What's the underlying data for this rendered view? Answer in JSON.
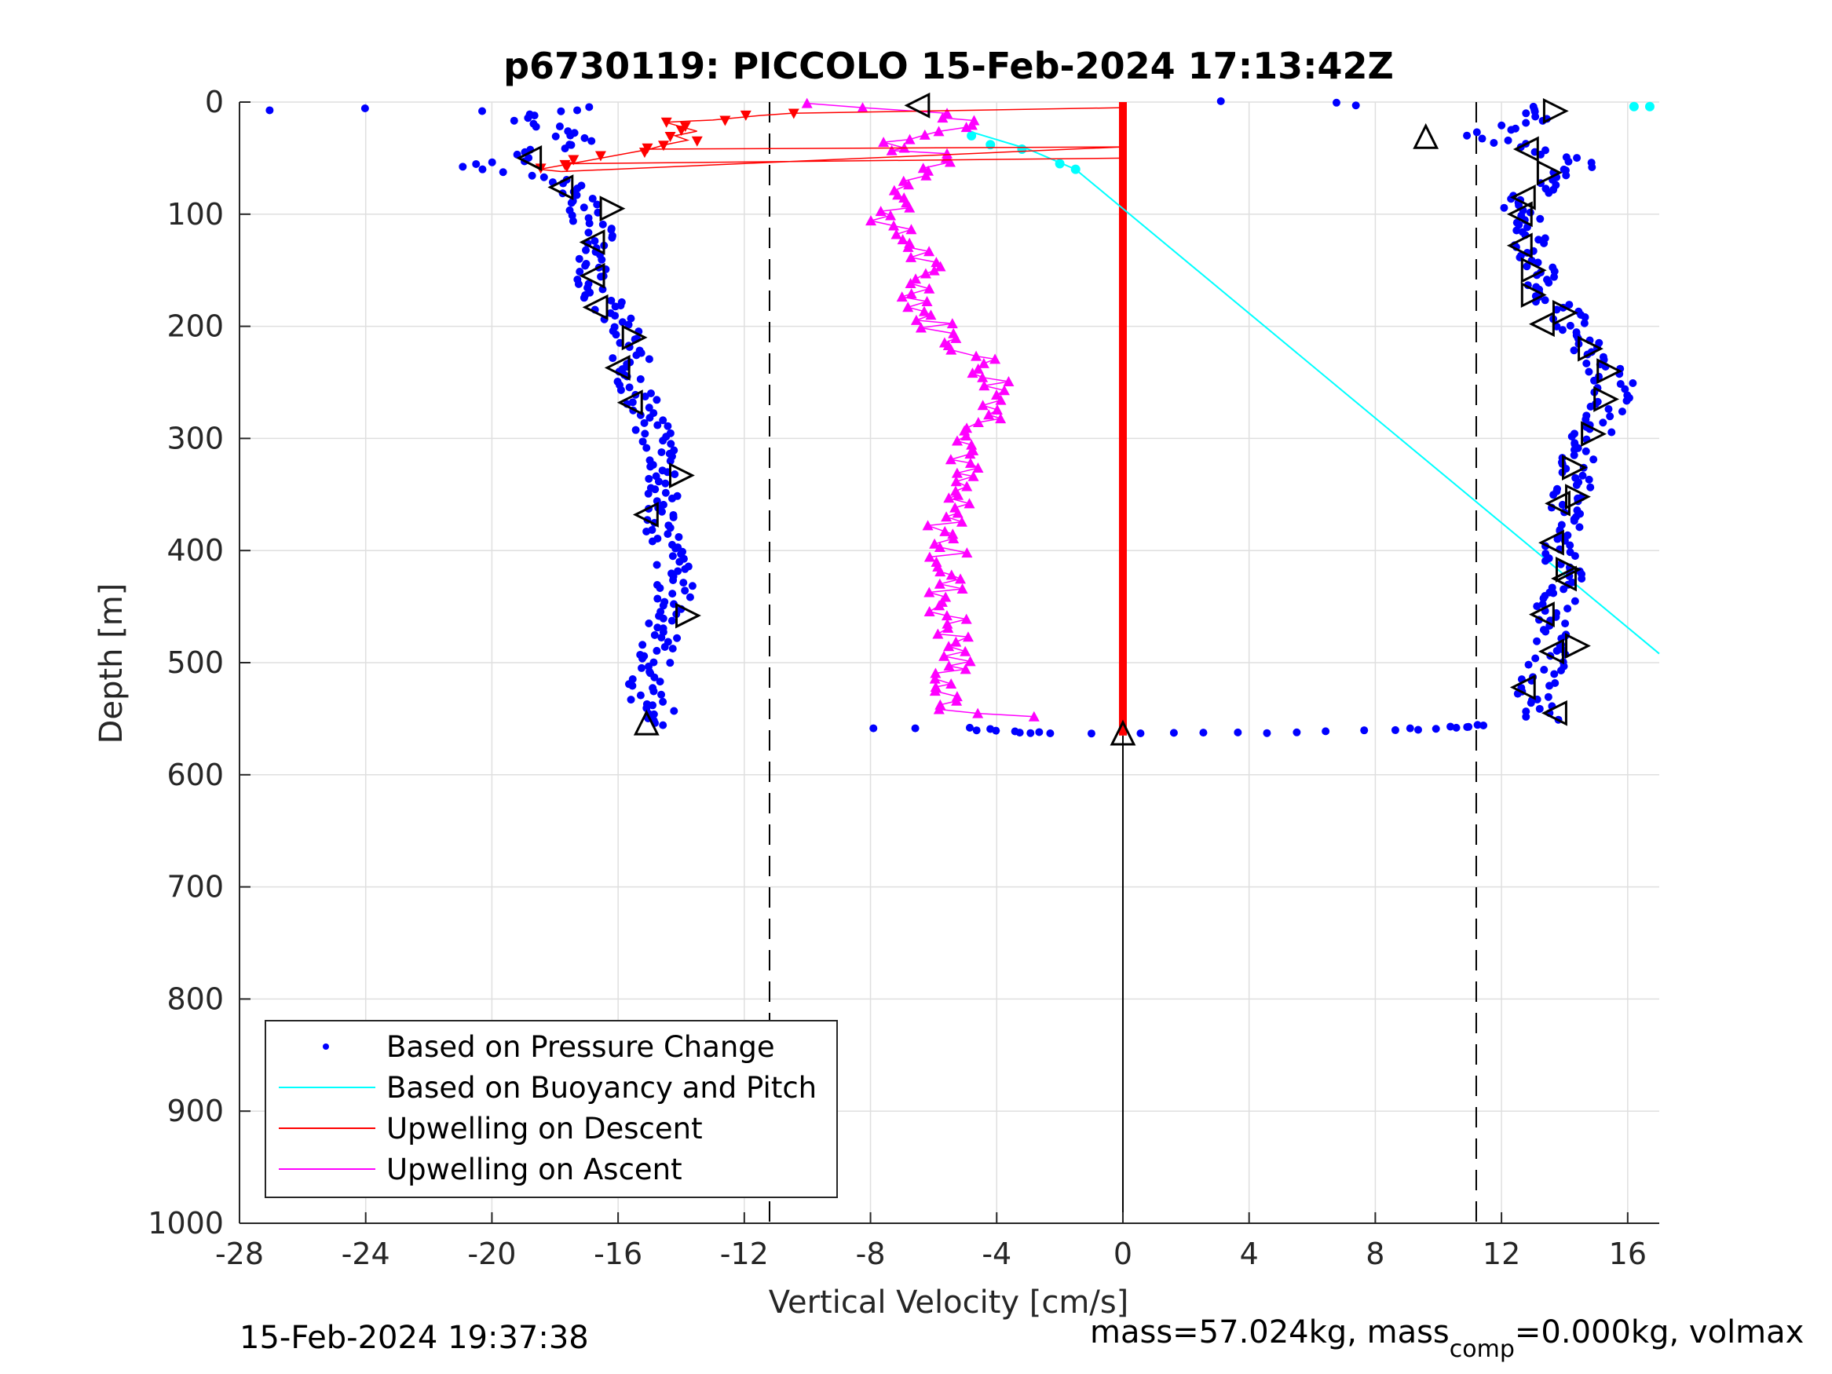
{
  "chart_data": {
    "type": "scatter",
    "title": "p6730119: PICCOLO 15-Feb-2024 17:13:42Z",
    "xlabel": "Vertical Velocity [cm/s]",
    "ylabel": "Depth [m]",
    "xlim": [
      -28,
      17
    ],
    "ylim": [
      0,
      1000
    ],
    "y_reversed": true,
    "grid": true,
    "xticks": [
      -28,
      -24,
      -20,
      -16,
      -12,
      -8,
      -4,
      0,
      4,
      8,
      12,
      16
    ],
    "yticks": [
      0,
      100,
      200,
      300,
      400,
      500,
      600,
      700,
      800,
      900,
      1000
    ],
    "reference_lines": [
      {
        "x": -11.2,
        "style": "dashed",
        "color": "#000000"
      },
      {
        "x": 11.2,
        "style": "dashed",
        "color": "#000000"
      },
      {
        "x": 0,
        "style": "solid",
        "color": "#000000",
        "y_from": 565,
        "y_to": 1000
      }
    ],
    "legend": {
      "position": "bottom-left",
      "entries": [
        {
          "label": "Based on Pressure Change",
          "color": "#0000ff",
          "style": "dot"
        },
        {
          "label": "Based on Buoyancy and Pitch",
          "color": "#00ffff",
          "style": "line"
        },
        {
          "label": "Upwelling on Descent",
          "color": "#ff0000",
          "style": "line"
        },
        {
          "label": "Upwelling on Ascent",
          "color": "#ff00ff",
          "style": "line"
        }
      ]
    },
    "series": [
      {
        "name": "Based on Pressure Change",
        "color": "#0000ff",
        "marker": "dot",
        "descent_profile": [
          {
            "x": -27,
            "y": 8
          },
          {
            "x": -24,
            "y": 6
          },
          {
            "x": -20,
            "y": 8
          },
          {
            "x": -17,
            "y": 5
          },
          {
            "x": -19,
            "y": 15
          },
          {
            "x": -18,
            "y": 25
          },
          {
            "x": -17,
            "y": 35
          },
          {
            "x": -18.5,
            "y": 45
          },
          {
            "x": -19,
            "y": 52
          },
          {
            "x": -20.5,
            "y": 58
          },
          {
            "x": -18.5,
            "y": 65
          },
          {
            "x": -17.5,
            "y": 75
          },
          {
            "x": -17,
            "y": 90
          },
          {
            "x": -16.8,
            "y": 110
          },
          {
            "x": -16.5,
            "y": 130
          },
          {
            "x": -16.8,
            "y": 150
          },
          {
            "x": -16.6,
            "y": 170
          },
          {
            "x": -16.2,
            "y": 190
          },
          {
            "x": -15.8,
            "y": 210
          },
          {
            "x": -15.6,
            "y": 230
          },
          {
            "x": -15.5,
            "y": 250
          },
          {
            "x": -15.2,
            "y": 270
          },
          {
            "x": -15,
            "y": 290
          },
          {
            "x": -14.6,
            "y": 310
          },
          {
            "x": -14.5,
            "y": 330
          },
          {
            "x": -14.7,
            "y": 350
          },
          {
            "x": -14.6,
            "y": 370
          },
          {
            "x": -14.5,
            "y": 390
          },
          {
            "x": -14.3,
            "y": 410
          },
          {
            "x": -14.2,
            "y": 430
          },
          {
            "x": -14.3,
            "y": 450
          },
          {
            "x": -14.5,
            "y": 470
          },
          {
            "x": -14.8,
            "y": 490
          },
          {
            "x": -15,
            "y": 510
          },
          {
            "x": -15.2,
            "y": 530
          },
          {
            "x": -14.6,
            "y": 545
          },
          {
            "x": -15,
            "y": 555
          },
          {
            "x": -13.3,
            "y": 558
          }
        ],
        "bottom_turn": [
          {
            "x": -8,
            "y": 558
          },
          {
            "x": -5,
            "y": 559
          },
          {
            "x": -3.5,
            "y": 561
          },
          {
            "x": -2.2,
            "y": 563
          },
          {
            "x": 0.5,
            "y": 564
          },
          {
            "x": 2.5,
            "y": 563
          },
          {
            "x": 4.5,
            "y": 562
          },
          {
            "x": 6.5,
            "y": 561
          },
          {
            "x": 8.5,
            "y": 560
          },
          {
            "x": 10.5,
            "y": 558
          },
          {
            "x": 11.5,
            "y": 555
          }
        ],
        "ascent_profile": [
          {
            "x": 13.3,
            "y": 550
          },
          {
            "x": 13,
            "y": 530
          },
          {
            "x": 13.3,
            "y": 510
          },
          {
            "x": 13.6,
            "y": 490
          },
          {
            "x": 13.5,
            "y": 470
          },
          {
            "x": 13.7,
            "y": 450
          },
          {
            "x": 14,
            "y": 430
          },
          {
            "x": 13.9,
            "y": 410
          },
          {
            "x": 13.8,
            "y": 390
          },
          {
            "x": 14,
            "y": 370
          },
          {
            "x": 14.2,
            "y": 350
          },
          {
            "x": 14.3,
            "y": 330
          },
          {
            "x": 14.6,
            "y": 310
          },
          {
            "x": 15,
            "y": 290
          },
          {
            "x": 15.4,
            "y": 270
          },
          {
            "x": 15.6,
            "y": 250
          },
          {
            "x": 15,
            "y": 230
          },
          {
            "x": 14.6,
            "y": 210
          },
          {
            "x": 14,
            "y": 190
          },
          {
            "x": 13.3,
            "y": 170
          },
          {
            "x": 13.3,
            "y": 150
          },
          {
            "x": 12.9,
            "y": 130
          },
          {
            "x": 12.7,
            "y": 110
          },
          {
            "x": 12.5,
            "y": 90
          },
          {
            "x": 13.5,
            "y": 70
          },
          {
            "x": 14.8,
            "y": 55
          },
          {
            "x": 13,
            "y": 40
          },
          {
            "x": 11,
            "y": 30
          },
          {
            "x": 13.5,
            "y": 15
          },
          {
            "x": 12.5,
            "y": 5
          },
          {
            "x": 3.4,
            "y": 0
          },
          {
            "x": 7.3,
            "y": 0
          },
          {
            "x": -6,
            "y": 2
          }
        ]
      },
      {
        "name": "Based on Buoyancy and Pitch",
        "color": "#00ffff",
        "line": [
          {
            "x": -5,
            "y": 25
          },
          {
            "x": -3,
            "y": 42
          },
          {
            "x": -1.5,
            "y": 60
          },
          {
            "x": 17,
            "y": 492
          }
        ],
        "points": [
          {
            "x": 16.2,
            "y": 4
          },
          {
            "x": 16.7,
            "y": 4
          },
          {
            "x": -4.8,
            "y": 30
          },
          {
            "x": -4.2,
            "y": 38
          },
          {
            "x": -3.2,
            "y": 42
          },
          {
            "x": -2,
            "y": 55
          },
          {
            "x": -1.5,
            "y": 60
          }
        ]
      },
      {
        "name": "Upwelling on Descent",
        "color": "#ff0000",
        "marker": "triangle-down",
        "points": [
          {
            "x": -10.5,
            "y": 10
          },
          {
            "x": -11.5,
            "y": 12
          },
          {
            "x": -13,
            "y": 16
          },
          {
            "x": -14.5,
            "y": 18
          },
          {
            "x": -14,
            "y": 22
          },
          {
            "x": -13.5,
            "y": 26
          },
          {
            "x": -14.2,
            "y": 30
          },
          {
            "x": -13.8,
            "y": 34
          },
          {
            "x": -14.5,
            "y": 38
          },
          {
            "x": -15,
            "y": 42
          },
          {
            "x": -17.5,
            "y": 55
          },
          {
            "x": -18.5,
            "y": 60
          },
          {
            "x": -17.8,
            "y": 62
          },
          {
            "x": 0,
            "y": 5
          },
          {
            "x": 0,
            "y": 40
          },
          {
            "x": 0,
            "y": 50
          }
        ],
        "vertical_at_zero": {
          "x": 0,
          "y_from": 0,
          "y_to": 565
        }
      },
      {
        "name": "Upwelling on Ascent",
        "color": "#ff00ff",
        "marker": "triangle-up",
        "points": [
          {
            "x": -10,
            "y": 1
          },
          {
            "x": -5.5,
            "y": 10
          },
          {
            "x": -4.5,
            "y": 20
          },
          {
            "x": -6.5,
            "y": 30
          },
          {
            "x": -7.5,
            "y": 40
          },
          {
            "x": -5.5,
            "y": 50
          },
          {
            "x": -6.5,
            "y": 70
          },
          {
            "x": -7,
            "y": 90
          },
          {
            "x": -7.5,
            "y": 110
          },
          {
            "x": -6.5,
            "y": 130
          },
          {
            "x": -6.3,
            "y": 150
          },
          {
            "x": -6.4,
            "y": 170
          },
          {
            "x": -6.2,
            "y": 190
          },
          {
            "x": -5.5,
            "y": 210
          },
          {
            "x": -4.5,
            "y": 230
          },
          {
            "x": -4,
            "y": 250
          },
          {
            "x": -3.8,
            "y": 270
          },
          {
            "x": -4.4,
            "y": 290
          },
          {
            "x": -4.8,
            "y": 310
          },
          {
            "x": -5.2,
            "y": 330
          },
          {
            "x": -5.4,
            "y": 350
          },
          {
            "x": -5.6,
            "y": 370
          },
          {
            "x": -5.6,
            "y": 390
          },
          {
            "x": -5.5,
            "y": 410
          },
          {
            "x": -5.6,
            "y": 430
          },
          {
            "x": -5.6,
            "y": 450
          },
          {
            "x": -5.4,
            "y": 470
          },
          {
            "x": -5.3,
            "y": 490
          },
          {
            "x": -5.4,
            "y": 510
          },
          {
            "x": -5.8,
            "y": 530
          },
          {
            "x": -5.2,
            "y": 545
          },
          {
            "x": 0,
            "y": 552
          }
        ]
      },
      {
        "name": "",
        "color": "#000000",
        "marker": "open-triangle",
        "points": [
          {
            "x": -6.5,
            "y": 3,
            "dir": "left"
          },
          {
            "x": 13.7,
            "y": 8,
            "dir": "right"
          },
          {
            "x": 9.6,
            "y": 31,
            "dir": "up"
          },
          {
            "x": 12.8,
            "y": 42,
            "dir": "left"
          },
          {
            "x": -18.8,
            "y": 50,
            "dir": "left"
          },
          {
            "x": 13.5,
            "y": 63,
            "dir": "right"
          },
          {
            "x": -17.8,
            "y": 76,
            "dir": "left"
          },
          {
            "x": 12.7,
            "y": 85,
            "dir": "left"
          },
          {
            "x": -16.2,
            "y": 95,
            "dir": "right"
          },
          {
            "x": 12.6,
            "y": 100,
            "dir": "left"
          },
          {
            "x": -16.8,
            "y": 125,
            "dir": "left"
          },
          {
            "x": 12.6,
            "y": 128,
            "dir": "left"
          },
          {
            "x": 13,
            "y": 150,
            "dir": "right"
          },
          {
            "x": -16.8,
            "y": 155,
            "dir": "left"
          },
          {
            "x": 13,
            "y": 172,
            "dir": "right"
          },
          {
            "x": -16.7,
            "y": 183,
            "dir": "left"
          },
          {
            "x": 14,
            "y": 188,
            "dir": "right"
          },
          {
            "x": 13.3,
            "y": 198,
            "dir": "left"
          },
          {
            "x": -15.5,
            "y": 210,
            "dir": "right"
          },
          {
            "x": 14.8,
            "y": 220,
            "dir": "right"
          },
          {
            "x": -16,
            "y": 237,
            "dir": "left"
          },
          {
            "x": 15.4,
            "y": 240,
            "dir": "right"
          },
          {
            "x": 15.3,
            "y": 265,
            "dir": "right"
          },
          {
            "x": -15.6,
            "y": 268,
            "dir": "left"
          },
          {
            "x": 14.9,
            "y": 296,
            "dir": "right"
          },
          {
            "x": 14.3,
            "y": 326,
            "dir": "right"
          },
          {
            "x": -14,
            "y": 333,
            "dir": "right"
          },
          {
            "x": 14.4,
            "y": 352,
            "dir": "right"
          },
          {
            "x": 13.8,
            "y": 358,
            "dir": "left"
          },
          {
            "x": -15.1,
            "y": 368,
            "dir": "left"
          },
          {
            "x": 13.6,
            "y": 393,
            "dir": "left"
          },
          {
            "x": 14.1,
            "y": 417,
            "dir": "right"
          },
          {
            "x": 14,
            "y": 425,
            "dir": "left"
          },
          {
            "x": -13.8,
            "y": 458,
            "dir": "right"
          },
          {
            "x": 13.3,
            "y": 457,
            "dir": "left"
          },
          {
            "x": 14.4,
            "y": 485,
            "dir": "right"
          },
          {
            "x": 13.6,
            "y": 490,
            "dir": "left"
          },
          {
            "x": 12.7,
            "y": 522,
            "dir": "left"
          },
          {
            "x": 13.7,
            "y": 545,
            "dir": "left"
          },
          {
            "x": -15.1,
            "y": 554,
            "dir": "up"
          },
          {
            "x": 0,
            "y": 563,
            "dir": "up"
          }
        ]
      }
    ]
  },
  "footer": {
    "timestamp": "15-Feb-2024 19:37:38",
    "mass_text_pre": "mass=57.024kg, mass",
    "mass_text_sub": "comp",
    "mass_text_post": "=0.000kg, volmax"
  }
}
